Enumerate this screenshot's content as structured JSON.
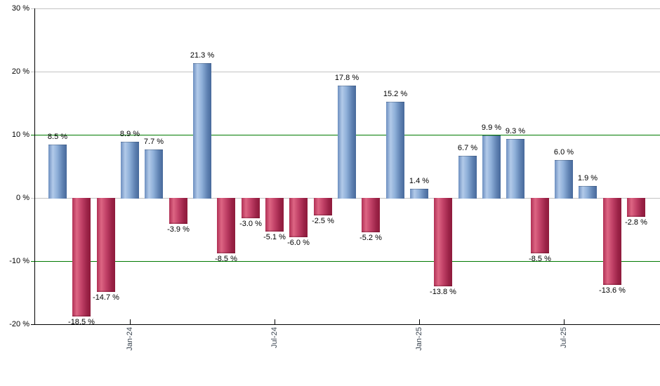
{
  "chart_data": {
    "type": "bar",
    "title": "",
    "unit": "%",
    "ylim": [
      -20,
      30
    ],
    "values": [
      8.5,
      -18.5,
      -14.7,
      8.9,
      7.7,
      -3.9,
      21.3,
      -8.5,
      -3.0,
      -5.1,
      -6.0,
      -2.5,
      17.8,
      -5.2,
      15.2,
      1.4,
      -13.8,
      6.7,
      9.9,
      9.3,
      -8.5,
      6.0,
      1.9,
      -13.6,
      -2.8
    ],
    "value_labels": [
      "8.5 %",
      "-18.5 %",
      "-14.7 %",
      "8.9 %",
      "7.7 %",
      "-3.9 %",
      "21.3 %",
      "-8.5 %",
      "-3.0 %",
      "-5.1 %",
      "-6.0 %",
      "-2.5 %",
      "17.8 %",
      "-5.2 %",
      "15.2 %",
      "1.4 %",
      "-13.8 %",
      "6.7 %",
      "9.9 %",
      "9.3 %",
      "-8.5 %",
      "6.0 %",
      "1.9 %",
      "-13.6 %",
      "-2.8 %"
    ],
    "x_ticks": [
      {
        "label": "Jan-24",
        "bar_index": 3
      },
      {
        "label": "Jul-24",
        "bar_index": 9
      },
      {
        "label": "Jan-25",
        "bar_index": 15
      },
      {
        "label": "Jul-25",
        "bar_index": 21
      }
    ],
    "y_ticks": [
      {
        "label": "30 %",
        "value": 30
      },
      {
        "label": "20 %",
        "value": 20
      },
      {
        "label": "10 %",
        "value": 10
      },
      {
        "label": "0 %",
        "value": 0
      },
      {
        "label": "-10 %",
        "value": -10
      },
      {
        "label": "-20 %",
        "value": -20
      }
    ],
    "gridlines": [
      {
        "value": 30,
        "style": "gray"
      },
      {
        "value": 20,
        "style": "gray"
      },
      {
        "value": 10,
        "style": "green"
      },
      {
        "value": 0,
        "style": "gray"
      },
      {
        "value": -10,
        "style": "green"
      }
    ],
    "colors": {
      "positive_bar_edge_left": "#6d8fc0",
      "positive_bar_highlight": "#b2cae9",
      "positive_bar_mid": "#8fb0d9",
      "positive_bar_edge_right": "#47699b",
      "negative_bar_edge_left": "#b03055",
      "negative_bar_highlight": "#dd6583",
      "negative_bar_mid": "#c04066",
      "negative_bar_edge_right": "#8f1b3c",
      "grid_gray": "#c4c4c4",
      "grid_green": "#007a00",
      "axis": "#000000",
      "value_label_text": "#000000",
      "x_label_text": "#3c4652",
      "background": "#ffffff"
    },
    "legend": null,
    "grid": true
  }
}
